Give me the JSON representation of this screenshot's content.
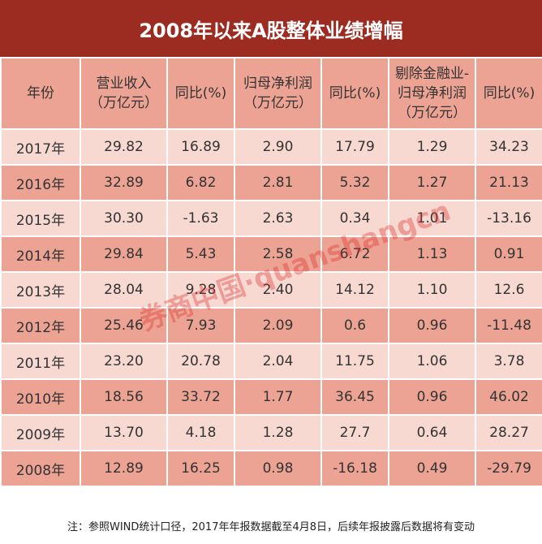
{
  "title": "2008年以来A股整体业绩增幅",
  "table": {
    "header": [
      [
        "年份"
      ],
      [
        "营业收入",
        "（万亿元）"
      ],
      [
        "同比(%)"
      ],
      [
        "归母净利润",
        "（万亿元）"
      ],
      [
        "同比(%)"
      ],
      [
        "剔除金融业-",
        "归母净利润",
        "（万亿元）"
      ],
      [
        "同比(%)"
      ]
    ],
    "rows": [
      [
        "2017年",
        "29.82",
        "16.89",
        "2.90",
        "17.79",
        "1.29",
        "34.23"
      ],
      [
        "2016年",
        "32.89",
        "6.82",
        "2.81",
        "5.32",
        "1.27",
        "21.13"
      ],
      [
        "2015年",
        "30.30",
        "-1.63",
        "2.63",
        "0.34",
        "1.01",
        "-13.16"
      ],
      [
        "2014年",
        "29.84",
        "5.43",
        "2.58",
        "6.72",
        "1.13",
        "0.91"
      ],
      [
        "2013年",
        "28.04",
        "9.28",
        "2.40",
        "14.12",
        "1.10",
        "12.6"
      ],
      [
        "2012年",
        "25.46",
        "7.93",
        "2.09",
        "0.6",
        "0.96",
        "-11.48"
      ],
      [
        "2011年",
        "23.20",
        "20.78",
        "2.04",
        "11.75",
        "1.06",
        "3.78"
      ],
      [
        "2010年",
        "18.56",
        "33.72",
        "1.77",
        "36.45",
        "0.96",
        "46.02"
      ],
      [
        "2009年",
        "13.70",
        "4.18",
        "1.28",
        "27.7",
        "0.64",
        "28.27"
      ],
      [
        "2008年",
        "12.89",
        "16.25",
        "0.98",
        "-16.18",
        "0.49",
        "-29.79"
      ]
    ]
  },
  "note": "注：参照WIND统计口径，2017年年报数据截至4月8日，后续年报披露后数据将有变动",
  "watermark": "券商中国·quanshangcn"
}
